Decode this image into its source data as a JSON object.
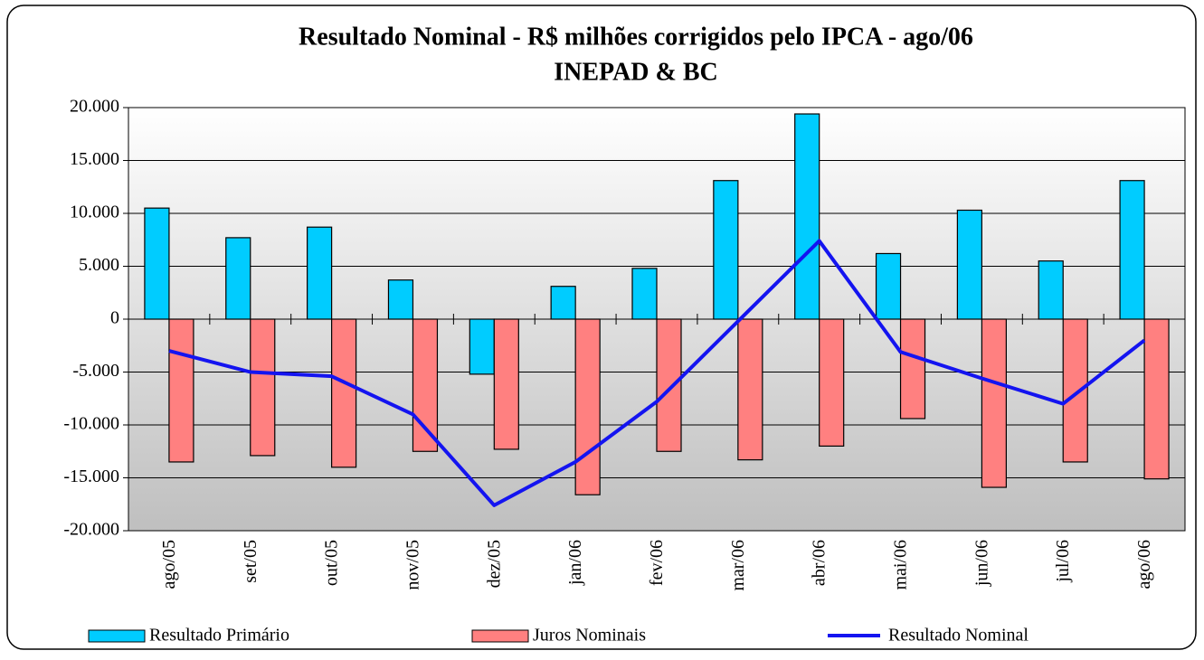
{
  "chart_data": {
    "type": "bar_line",
    "title": "Resultado Nominal - R$ milhões corrigidos pelo IPCA - ago/06",
    "subtitle": "INEPAD & BC",
    "categories": [
      "ago/05",
      "set/05",
      "out/05",
      "nov/05",
      "dez/05",
      "jan/06",
      "fev/06",
      "mar/06",
      "abr/06",
      "mai/06",
      "jun/06",
      "jul/06",
      "ago/06"
    ],
    "series": [
      {
        "name": "Resultado Primário",
        "type": "bar",
        "color": "#00ccff",
        "values": [
          10500,
          7700,
          8700,
          3700,
          -5200,
          3100,
          4800,
          13100,
          19400,
          6200,
          10300,
          5500,
          13100
        ]
      },
      {
        "name": "Juros Nominais",
        "type": "bar",
        "color": "#ff8080",
        "values": [
          -13500,
          -12900,
          -14000,
          -12500,
          -12300,
          -16600,
          -12500,
          -13300,
          -12000,
          -9400,
          -15900,
          -13500,
          -15100
        ]
      },
      {
        "name": "Resultado Nominal",
        "type": "line",
        "color": "#1414f0",
        "values": [
          -3000,
          -5000,
          -5400,
          -9000,
          -17600,
          -13500,
          -7800,
          -200,
          7400,
          -3100,
          -5600,
          -8000,
          -2000
        ]
      }
    ],
    "ylim": [
      -20000,
      20000
    ],
    "yticks": [
      {
        "value": -20000,
        "label": "-20.000"
      },
      {
        "value": -15000,
        "label": "-15.000"
      },
      {
        "value": -10000,
        "label": "-10.000"
      },
      {
        "value": -5000,
        "label": "-5.000"
      },
      0,
      {
        "value": 5000,
        "label": "5.000"
      },
      {
        "value": 10000,
        "label": "10.000"
      },
      {
        "value": 15000,
        "label": "15.000"
      },
      {
        "value": 20000,
        "label": "20.000"
      }
    ],
    "grid": true,
    "legend": "bottom"
  }
}
